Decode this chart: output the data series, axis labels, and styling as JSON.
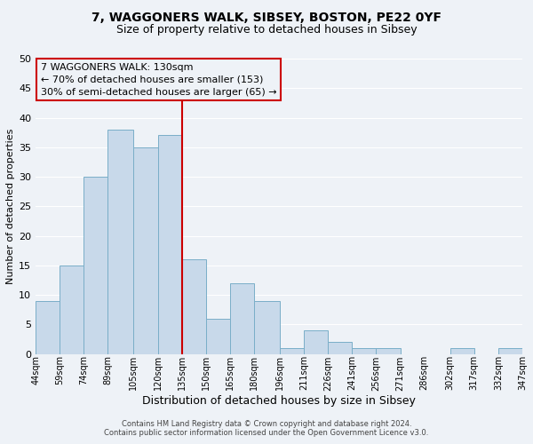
{
  "title": "7, WAGGONERS WALK, SIBSEY, BOSTON, PE22 0YF",
  "subtitle": "Size of property relative to detached houses in Sibsey",
  "xlabel": "Distribution of detached houses by size in Sibsey",
  "ylabel": "Number of detached properties",
  "bar_edges": [
    44,
    59,
    74,
    89,
    105,
    120,
    135,
    150,
    165,
    180,
    196,
    211,
    226,
    241,
    256,
    271,
    286,
    302,
    317,
    332,
    347
  ],
  "bar_heights": [
    9,
    15,
    30,
    38,
    35,
    37,
    16,
    6,
    12,
    9,
    1,
    4,
    2,
    1,
    1,
    0,
    0,
    1,
    0,
    1
  ],
  "bar_color": "#c8d9ea",
  "bar_edgecolor": "#7aaec8",
  "vline_x": 135,
  "vline_color": "#cc0000",
  "ylim": [
    0,
    50
  ],
  "xlim_min": 44,
  "xlim_max": 347,
  "annotation_title": "7 WAGGONERS WALK: 130sqm",
  "annotation_line1": "← 70% of detached houses are smaller (153)",
  "annotation_line2": "30% of semi-detached houses are larger (65) →",
  "annotation_box_edgecolor": "#cc0000",
  "footer_line1": "Contains HM Land Registry data © Crown copyright and database right 2024.",
  "footer_line2": "Contains public sector information licensed under the Open Government Licence v3.0.",
  "tick_labels": [
    "44sqm",
    "59sqm",
    "74sqm",
    "89sqm",
    "105sqm",
    "120sqm",
    "135sqm",
    "150sqm",
    "165sqm",
    "180sqm",
    "196sqm",
    "211sqm",
    "226sqm",
    "241sqm",
    "256sqm",
    "271sqm",
    "286sqm",
    "302sqm",
    "317sqm",
    "332sqm",
    "347sqm"
  ],
  "yticks": [
    0,
    5,
    10,
    15,
    20,
    25,
    30,
    35,
    40,
    45,
    50
  ],
  "background_color": "#eef2f7",
  "grid_color": "#ffffff",
  "title_fontsize": 10,
  "subtitle_fontsize": 9,
  "ylabel_fontsize": 8,
  "xlabel_fontsize": 9,
  "tick_fontsize": 7,
  "ytick_fontsize": 8,
  "annotation_fontsize": 8,
  "footer_fontsize": 6
}
